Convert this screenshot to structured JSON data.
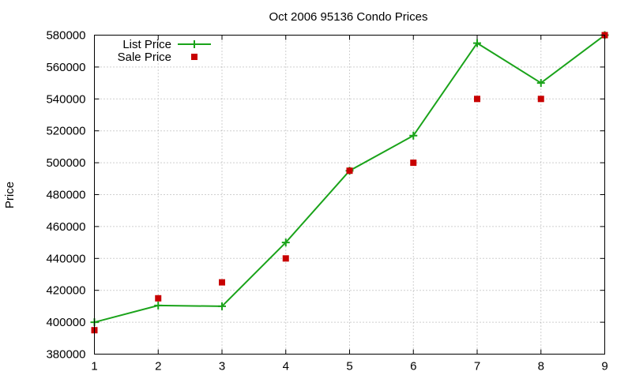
{
  "chart_data": {
    "type": "line",
    "title": "Oct 2006 95136 Condo Prices",
    "xlabel": "",
    "ylabel": "Price",
    "xlim": [
      1,
      9
    ],
    "ylim": [
      380000,
      580000
    ],
    "x_ticks": [
      1,
      2,
      3,
      4,
      5,
      6,
      7,
      8,
      9
    ],
    "y_ticks": [
      380000,
      400000,
      420000,
      440000,
      460000,
      480000,
      500000,
      520000,
      540000,
      560000,
      580000
    ],
    "grid": true,
    "legend_position": "top-left",
    "series": [
      {
        "name": "List Price",
        "style": "linespoints",
        "marker": "plus",
        "color": "#1aa31a",
        "x": [
          1,
          2,
          3,
          4,
          5,
          6,
          7,
          8,
          9
        ],
        "y": [
          400000,
          410500,
          410000,
          450000,
          495000,
          517000,
          575000,
          550000,
          580000
        ]
      },
      {
        "name": "Sale Price",
        "style": "points",
        "marker": "square",
        "color": "#c80000",
        "x": [
          1,
          2,
          3,
          4,
          5,
          6,
          7,
          8,
          9
        ],
        "y": [
          395000,
          415000,
          425000,
          440000,
          495000,
          500000,
          540000,
          540000,
          580000
        ]
      }
    ]
  }
}
